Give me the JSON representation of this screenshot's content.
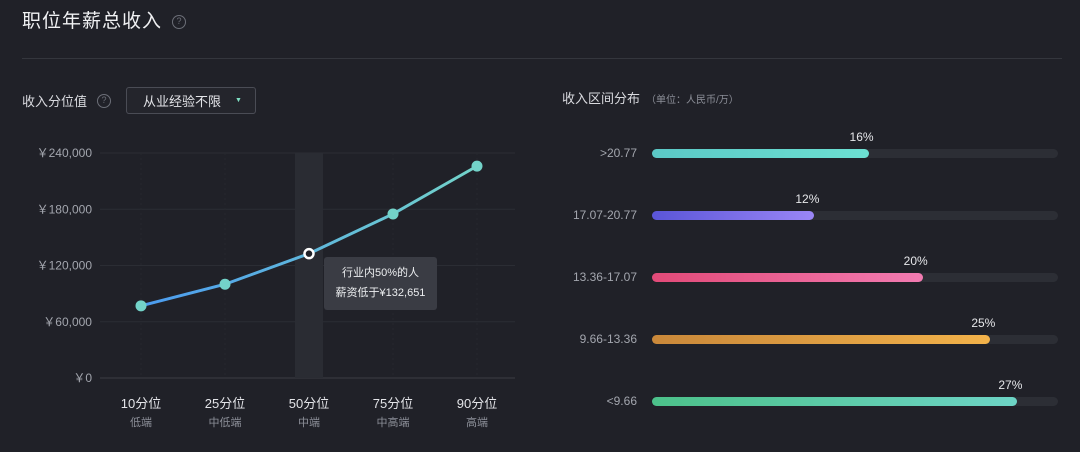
{
  "header": {
    "title": "职位年薪总收入",
    "help_icon": "?"
  },
  "left": {
    "label": "收入分位值",
    "help_icon": "?",
    "filter": {
      "selected": "从业经验不限",
      "caret": "▼"
    },
    "tooltip": {
      "line1": "行业内50%的人",
      "line2": "薪资低于¥132,651"
    }
  },
  "right": {
    "label": "收入区间分布",
    "unit": "（单位：人民币/万）"
  },
  "chart_data": [
    {
      "type": "line",
      "title": "",
      "categories": [
        "10分位",
        "25分位",
        "50分位",
        "75分位",
        "90分位"
      ],
      "sublabels": [
        "低端",
        "中低端",
        "中端",
        "中高端",
        "高端"
      ],
      "values": [
        77000,
        100000,
        132651,
        175000,
        226000
      ],
      "yticks": [
        "￥240,000",
        "￥180,000",
        "￥120,000",
        "￥60,000",
        "￥0"
      ],
      "ylim": [
        0,
        240000
      ],
      "highlight_index": 2,
      "line_colors": [
        "#4b9bf0",
        "#73d3c9"
      ],
      "point_color": "#73d3c9",
      "grid": true
    },
    {
      "type": "bar",
      "orientation": "horizontal",
      "categories": [
        ">20.77",
        "17.07-20.77",
        "13.36-17.07",
        "9.66-13.36",
        "<9.66"
      ],
      "values": [
        16,
        12,
        20,
        25,
        27
      ],
      "labels": [
        "16%",
        "12%",
        "20%",
        "25%",
        "27%"
      ],
      "xlim": [
        0,
        30
      ],
      "colors": [
        [
          "#5bc8c6",
          "#6ce0d2"
        ],
        [
          "#5a55d8",
          "#9a86f6"
        ],
        [
          "#e24a78",
          "#f27bb1"
        ],
        [
          "#c9883a",
          "#f2b24a"
        ],
        [
          "#4cc18a",
          "#6dd4c6"
        ]
      ]
    }
  ]
}
